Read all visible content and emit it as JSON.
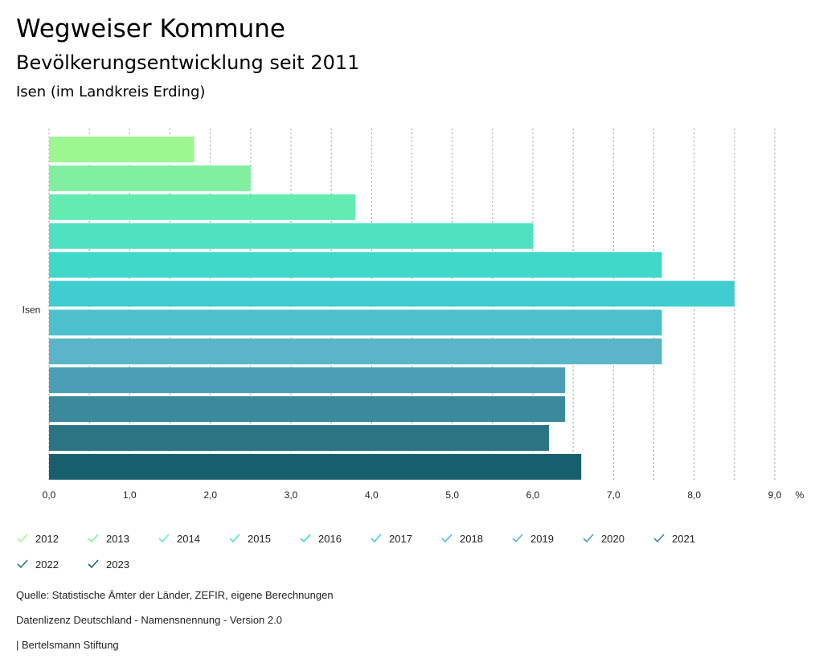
{
  "header": {
    "title": "Wegweiser Kommune",
    "subtitle": "Bevölkerungsentwicklung seit 2011",
    "region": "Isen (im Landkreis Erding)"
  },
  "chart_data": {
    "type": "bar",
    "orientation": "horizontal",
    "categories": [
      "Isen"
    ],
    "unit": "%",
    "xlim": [
      0,
      9
    ],
    "x_ticks": [
      "0,0",
      "1,0",
      "2,0",
      "3,0",
      "4,0",
      "5,0",
      "6,0",
      "7,0",
      "8,0",
      "9,0"
    ],
    "grid": true,
    "legend_position": "bottom",
    "series": [
      {
        "name": "2012",
        "values": [
          1.8
        ],
        "color": "#9cf790"
      },
      {
        "name": "2013",
        "values": [
          2.5
        ],
        "color": "#80f0a0"
      },
      {
        "name": "2014",
        "values": [
          3.8
        ],
        "color": "#64ebb2"
      },
      {
        "name": "2015",
        "values": [
          6.0
        ],
        "color": "#50e2c0"
      },
      {
        "name": "2016",
        "values": [
          7.6
        ],
        "color": "#40d8c8"
      },
      {
        "name": "2017",
        "values": [
          8.5
        ],
        "color": "#40cdd0"
      },
      {
        "name": "2018",
        "values": [
          7.6
        ],
        "color": "#4cc0cc"
      },
      {
        "name": "2019",
        "values": [
          7.6
        ],
        "color": "#5ab5c8"
      },
      {
        "name": "2020",
        "values": [
          6.4
        ],
        "color": "#4a9fb4"
      },
      {
        "name": "2021",
        "values": [
          6.4
        ],
        "color": "#3a8a9c"
      },
      {
        "name": "2022",
        "values": [
          6.2
        ],
        "color": "#2a7484"
      },
      {
        "name": "2023",
        "values": [
          6.6
        ],
        "color": "#185f6e"
      }
    ]
  },
  "footer": {
    "source": "Quelle: Statistische Ämter der Länder, ZEFIR, eigene Berechnungen",
    "license": "Datenlizenz Deutschland - Namensnennung - Version 2.0",
    "publisher": "| Bertelsmann Stiftung"
  }
}
